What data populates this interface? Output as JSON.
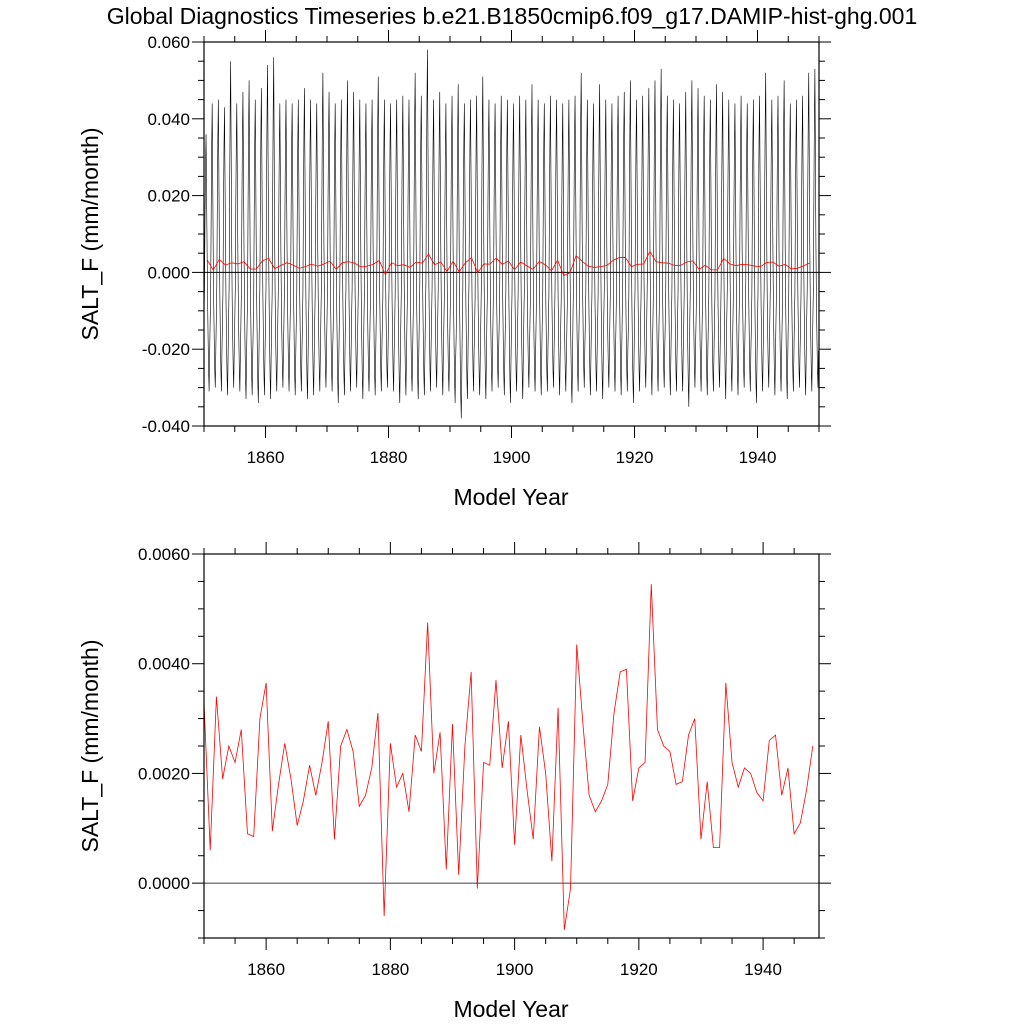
{
  "title": "Global Diagnostics Timeseries b.e21.B1850cmip6.f09_g17.DAMIP-hist-ghg.001",
  "colors": {
    "monthly": "#000000",
    "annual": "#ff0000",
    "zero_line": "#000000",
    "axes": "#000000"
  },
  "chart_data": [
    {
      "type": "line",
      "xlabel": "Model Year",
      "ylabel": "SALT_F (mm/month)",
      "xlim": [
        1850,
        1950
      ],
      "ylim": [
        -0.04,
        0.06
      ],
      "xticks": [
        1860,
        1880,
        1900,
        1920,
        1940
      ],
      "xtick_labels": [
        "1860",
        "1880",
        "1900",
        "1920",
        "1940"
      ],
      "yticks": [
        -0.04,
        -0.02,
        0.0,
        0.02,
        0.04,
        0.06
      ],
      "ytick_labels": [
        "-0.040",
        "-0.020",
        "0.000",
        "0.020",
        "0.040",
        "0.060"
      ],
      "reference_line_y": 0.0,
      "series": [
        {
          "kind": "monthly",
          "color": "#000000",
          "x_start": 1850.0,
          "points_per_year": 12,
          "peak_max_by_year": [
            0.036,
            0.044,
            0.045,
            0.043,
            0.055,
            0.044,
            0.047,
            0.05,
            0.045,
            0.048,
            0.054,
            0.056,
            0.044,
            0.045,
            0.044,
            0.045,
            0.048,
            0.045,
            0.044,
            0.052,
            0.047,
            0.044,
            0.045,
            0.05,
            0.047,
            0.045,
            0.044,
            0.045,
            0.051,
            0.045,
            0.044,
            0.045,
            0.046,
            0.045,
            0.052,
            0.046,
            0.058,
            0.045,
            0.047,
            0.044,
            0.046,
            0.049,
            0.044,
            0.045,
            0.046,
            0.051,
            0.045,
            0.044,
            0.046,
            0.045,
            0.044,
            0.046,
            0.045,
            0.049,
            0.045,
            0.044,
            0.046,
            0.045,
            0.044,
            0.045,
            0.046,
            0.052,
            0.045,
            0.044,
            0.049,
            0.045,
            0.044,
            0.046,
            0.047,
            0.05,
            0.045,
            0.046,
            0.048,
            0.05,
            0.053,
            0.046,
            0.045,
            0.044,
            0.047,
            0.05,
            0.048,
            0.046,
            0.045,
            0.049,
            0.047,
            0.045,
            0.044,
            0.046,
            0.044,
            0.045,
            0.046,
            0.052,
            0.045,
            0.046,
            0.05,
            0.044,
            0.045,
            0.046,
            0.052,
            0.053
          ],
          "trough_min_by_year": [
            -0.031,
            -0.03,
            -0.031,
            -0.032,
            -0.03,
            -0.031,
            -0.033,
            -0.032,
            -0.034,
            -0.032,
            -0.033,
            -0.031,
            -0.03,
            -0.031,
            -0.032,
            -0.031,
            -0.033,
            -0.032,
            -0.031,
            -0.03,
            -0.031,
            -0.034,
            -0.032,
            -0.031,
            -0.03,
            -0.033,
            -0.031,
            -0.032,
            -0.031,
            -0.03,
            -0.031,
            -0.034,
            -0.032,
            -0.031,
            -0.033,
            -0.032,
            -0.031,
            -0.03,
            -0.032,
            -0.031,
            -0.034,
            -0.038,
            -0.033,
            -0.031,
            -0.032,
            -0.033,
            -0.031,
            -0.03,
            -0.032,
            -0.034,
            -0.031,
            -0.033,
            -0.03,
            -0.031,
            -0.032,
            -0.031,
            -0.03,
            -0.032,
            -0.031,
            -0.034,
            -0.031,
            -0.03,
            -0.032,
            -0.031,
            -0.033,
            -0.03,
            -0.031,
            -0.032,
            -0.031,
            -0.034,
            -0.031,
            -0.03,
            -0.032,
            -0.031,
            -0.03,
            -0.032,
            -0.031,
            -0.031,
            -0.035,
            -0.03,
            -0.031,
            -0.032,
            -0.031,
            -0.03,
            -0.033,
            -0.031,
            -0.032,
            -0.03,
            -0.031,
            -0.034,
            -0.031,
            -0.03,
            -0.032,
            -0.031,
            -0.033,
            -0.031,
            -0.03,
            -0.032,
            -0.031,
            -0.03
          ]
        },
        {
          "kind": "annual",
          "color": "#ff0000",
          "ref": "annual_values"
        }
      ]
    },
    {
      "type": "line",
      "xlabel": "Model Year",
      "ylabel": "SALT_F (mm/month)",
      "xlim": [
        1850,
        1949
      ],
      "ylim": [
        -0.001,
        0.006
      ],
      "xticks": [
        1860,
        1880,
        1900,
        1920,
        1940
      ],
      "xtick_labels": [
        "1860",
        "1880",
        "1900",
        "1920",
        "1940"
      ],
      "yticks": [
        0.0,
        0.002,
        0.004,
        0.006
      ],
      "ytick_labels": [
        "0.0000",
        "0.0020",
        "0.0040",
        "0.0060"
      ],
      "reference_line_y": 0.0,
      "series": [
        {
          "kind": "annual",
          "color": "#ff0000",
          "ref": "annual_values"
        }
      ]
    }
  ],
  "annual_values": {
    "x_start": 1850,
    "values": [
      0.0033,
      0.0006,
      0.0034,
      0.0019,
      0.0025,
      0.0022,
      0.0028,
      0.0009,
      0.00085,
      0.003,
      0.00365,
      0.00095,
      0.0018,
      0.00255,
      0.0019,
      0.00105,
      0.0015,
      0.00215,
      0.0016,
      0.0022,
      0.00295,
      0.0008,
      0.0025,
      0.0028,
      0.0024,
      0.0014,
      0.0016,
      0.0021,
      0.0031,
      -0.0006,
      0.00255,
      0.00175,
      0.002,
      0.0013,
      0.0027,
      0.0024,
      0.00475,
      0.002,
      0.00275,
      0.00025,
      0.0029,
      0.00015,
      0.0025,
      0.00385,
      -0.0001,
      0.0022,
      0.00215,
      0.0037,
      0.0021,
      0.00295,
      0.0007,
      0.0027,
      0.0017,
      0.0008,
      0.00285,
      0.002,
      0.0004,
      0.0032,
      -0.00085,
      -0.0001,
      0.00435,
      0.0029,
      0.0016,
      0.0013,
      0.0015,
      0.0018,
      0.0031,
      0.00385,
      0.0039,
      0.0015,
      0.0021,
      0.0022,
      0.00545,
      0.0028,
      0.0025,
      0.0024,
      0.0018,
      0.00185,
      0.0027,
      0.003,
      0.0008,
      0.00185,
      0.00065,
      0.00065,
      0.00365,
      0.0022,
      0.00175,
      0.0021,
      0.002,
      0.00165,
      0.0015,
      0.0026,
      0.0027,
      0.0016,
      0.0021,
      0.0009,
      0.0011,
      0.0017,
      0.0025
    ]
  }
}
